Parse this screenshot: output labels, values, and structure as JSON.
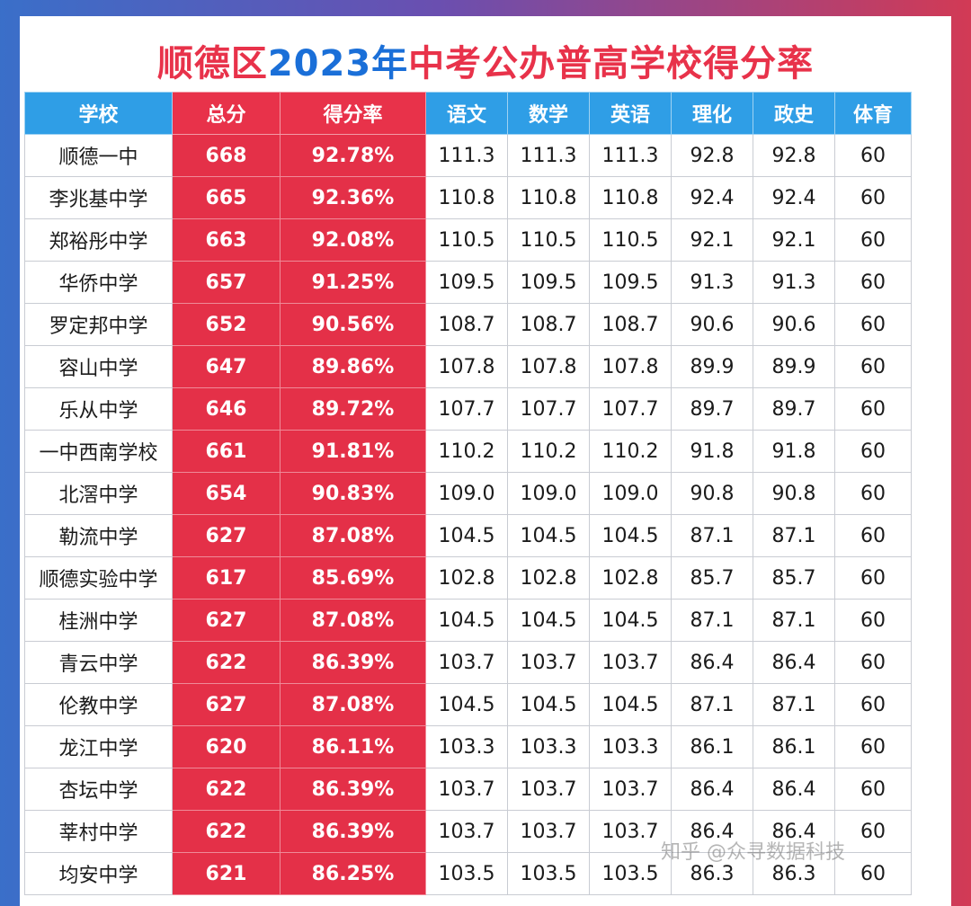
{
  "title": {
    "part1": "顺德区",
    "part2": "2023年",
    "part3": "中考公办普高学校得分率"
  },
  "headers": [
    "学校",
    "总分",
    "得分率",
    "语文",
    "数学",
    "英语",
    "理化",
    "政史",
    "体育"
  ],
  "rows": [
    [
      "顺德一中",
      "668",
      "92.78%",
      "111.3",
      "111.3",
      "111.3",
      "92.8",
      "92.8",
      "60"
    ],
    [
      "李兆基中学",
      "665",
      "92.36%",
      "110.8",
      "110.8",
      "110.8",
      "92.4",
      "92.4",
      "60"
    ],
    [
      "郑裕彤中学",
      "663",
      "92.08%",
      "110.5",
      "110.5",
      "110.5",
      "92.1",
      "92.1",
      "60"
    ],
    [
      "华侨中学",
      "657",
      "91.25%",
      "109.5",
      "109.5",
      "109.5",
      "91.3",
      "91.3",
      "60"
    ],
    [
      "罗定邦中学",
      "652",
      "90.56%",
      "108.7",
      "108.7",
      "108.7",
      "90.6",
      "90.6",
      "60"
    ],
    [
      "容山中学",
      "647",
      "89.86%",
      "107.8",
      "107.8",
      "107.8",
      "89.9",
      "89.9",
      "60"
    ],
    [
      "乐从中学",
      "646",
      "89.72%",
      "107.7",
      "107.7",
      "107.7",
      "89.7",
      "89.7",
      "60"
    ],
    [
      "一中西南学校",
      "661",
      "91.81%",
      "110.2",
      "110.2",
      "110.2",
      "91.8",
      "91.8",
      "60"
    ],
    [
      "北滘中学",
      "654",
      "90.83%",
      "109.0",
      "109.0",
      "109.0",
      "90.8",
      "90.8",
      "60"
    ],
    [
      "勒流中学",
      "627",
      "87.08%",
      "104.5",
      "104.5",
      "104.5",
      "87.1",
      "87.1",
      "60"
    ],
    [
      "顺德实验中学",
      "617",
      "85.69%",
      "102.8",
      "102.8",
      "102.8",
      "85.7",
      "85.7",
      "60"
    ],
    [
      "桂洲中学",
      "627",
      "87.08%",
      "104.5",
      "104.5",
      "104.5",
      "87.1",
      "87.1",
      "60"
    ],
    [
      "青云中学",
      "622",
      "86.39%",
      "103.7",
      "103.7",
      "103.7",
      "86.4",
      "86.4",
      "60"
    ],
    [
      "伦教中学",
      "627",
      "87.08%",
      "104.5",
      "104.5",
      "104.5",
      "87.1",
      "87.1",
      "60"
    ],
    [
      "龙江中学",
      "620",
      "86.11%",
      "103.3",
      "103.3",
      "103.3",
      "86.1",
      "86.1",
      "60"
    ],
    [
      "杏坛中学",
      "622",
      "86.39%",
      "103.7",
      "103.7",
      "103.7",
      "86.4",
      "86.4",
      "60"
    ],
    [
      "莘村中学",
      "622",
      "86.39%",
      "103.7",
      "103.7",
      "103.7",
      "86.4",
      "86.4",
      "60"
    ],
    [
      "均安中学",
      "621",
      "86.25%",
      "103.5",
      "103.5",
      "103.5",
      "86.3",
      "86.3",
      "60"
    ]
  ],
  "watermark": "知乎 @众寻数据科技",
  "colors": {
    "header_blue": "#2f9ee6",
    "accent_red": "#e43048",
    "title_blue": "#1a6fd8"
  }
}
